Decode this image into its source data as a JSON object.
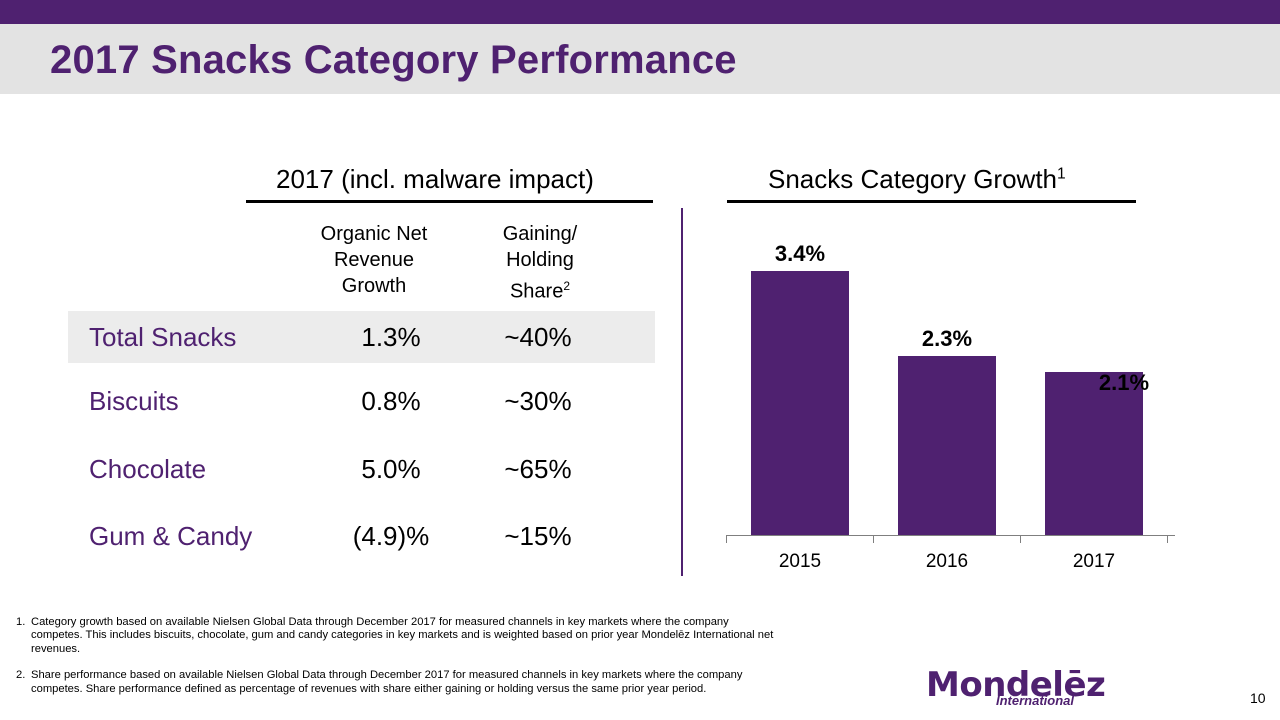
{
  "title": "2017 Snacks Category Performance",
  "table": {
    "section_heading": "2017 (incl. malware impact)",
    "col1_header": [
      "Organic Net",
      "Revenue",
      "Growth"
    ],
    "col2_header": [
      "Gaining/",
      "Holding",
      "Share"
    ],
    "col2_sup": "2",
    "rows": [
      {
        "label": "Total Snacks",
        "growth": "1.3%",
        "share": "~40%"
      },
      {
        "label": "Biscuits",
        "growth": "0.8%",
        "share": "~30%"
      },
      {
        "label": "Chocolate",
        "growth": "5.0%",
        "share": "~65%"
      },
      {
        "label": "Gum & Candy",
        "growth": "(4.9)%",
        "share": "~15%"
      }
    ]
  },
  "chart_section": {
    "heading": "Snacks Category Growth",
    "heading_sup": "1"
  },
  "chart_data": {
    "type": "bar",
    "title": "Snacks Category Growth",
    "categories": [
      "2015",
      "2016",
      "2017"
    ],
    "values": [
      3.4,
      2.3,
      2.1
    ],
    "data_labels": [
      "3.4%",
      "2.3%",
      "2.1%"
    ],
    "ylim": [
      0,
      3.4
    ],
    "grid": false,
    "bar_color": "#4f2170"
  },
  "footnotes": [
    {
      "num": "1.",
      "text": "Category growth based on available Nielsen Global Data through December 2017 for measured channels in key markets where the company competes.  This includes biscuits, chocolate, gum and candy categories in key markets and is weighted based on prior year Mondelēz International net revenues."
    },
    {
      "num": "2.",
      "text": "Share performance based on available Nielsen Global Data through December 2017 for measured channels in key markets where the company competes.  Share performance defined as percentage of revenues with share either gaining or holding versus the same prior year period."
    }
  ],
  "logo": {
    "main": "Mondelēz",
    "sub": "International"
  },
  "page_number": "10",
  "colors": {
    "brand": "#4f2170",
    "title_band": "#e3e3e3",
    "row_highlight": "#ececec"
  }
}
